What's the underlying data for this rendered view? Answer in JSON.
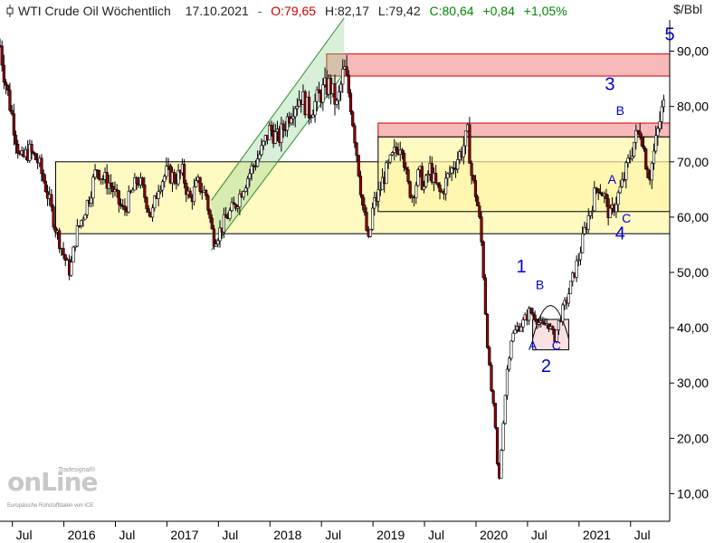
{
  "header": {
    "title": "WTI Crude Oil Wöchentlich",
    "date": "17.10.2021",
    "open": "O:79,65",
    "high": "H:82,17",
    "low": "L:79,42",
    "close": "C:80,64",
    "change": "+0,84",
    "change_pct": "+1,05%",
    "unit": "$/Bbl"
  },
  "watermark": {
    "brand_small": "Tradesignal®",
    "brand": "onLine",
    "credit": "Europäische Rohstoffdaten von ICE"
  },
  "colors": {
    "up_candle": "#000000",
    "down_candle": "#8b0000",
    "open_text": "#cc0000",
    "close_text": "#008800",
    "resistance_zone": "#f08080",
    "support_zone": "#fff6a8",
    "channel": "#8fd08f",
    "wave_label": "#0000cc"
  },
  "chart_data": {
    "type": "candlestick",
    "title": "WTI Crude Oil Wöchentlich",
    "ylabel": "$/Bbl",
    "ylim": [
      5,
      95
    ],
    "xlim": [
      2015.38,
      2021.88
    ],
    "yticks": [
      "10,00",
      "20,00",
      "30,00",
      "40,00",
      "50,00",
      "60,00",
      "70,00",
      "80,00",
      "90,00"
    ],
    "ytick_values": [
      10,
      20,
      30,
      40,
      50,
      60,
      70,
      80,
      90
    ],
    "xticks": [
      {
        "label": "Jul",
        "x": 2015.5
      },
      {
        "label": "2016",
        "x": 2016.0
      },
      {
        "label": "Jul",
        "x": 2016.5
      },
      {
        "label": "2017",
        "x": 2017.0
      },
      {
        "label": "Jul",
        "x": 2017.5
      },
      {
        "label": "2018",
        "x": 2018.0
      },
      {
        "label": "Jul",
        "x": 2018.5
      },
      {
        "label": "2019",
        "x": 2019.0
      },
      {
        "label": "Jul",
        "x": 2019.5
      },
      {
        "label": "2020",
        "x": 2020.0
      },
      {
        "label": "Jul",
        "x": 2020.5
      },
      {
        "label": "2021",
        "x": 2021.0
      },
      {
        "label": "Jul",
        "x": 2021.5
      }
    ],
    "price_path": [
      [
        2015.38,
        91
      ],
      [
        2015.42,
        86
      ],
      [
        2015.5,
        78
      ],
      [
        2015.58,
        70
      ],
      [
        2015.66,
        72
      ],
      [
        2015.75,
        70
      ],
      [
        2015.83,
        65
      ],
      [
        2015.92,
        58
      ],
      [
        2016.0,
        53
      ],
      [
        2016.06,
        50
      ],
      [
        2016.12,
        57
      ],
      [
        2016.18,
        60
      ],
      [
        2016.25,
        64
      ],
      [
        2016.32,
        69
      ],
      [
        2016.38,
        67
      ],
      [
        2016.45,
        66
      ],
      [
        2016.52,
        63
      ],
      [
        2016.58,
        61
      ],
      [
        2016.65,
        64
      ],
      [
        2016.72,
        67
      ],
      [
        2016.8,
        63
      ],
      [
        2016.85,
        60
      ],
      [
        2016.92,
        66
      ],
      [
        2017.0,
        68
      ],
      [
        2017.08,
        67
      ],
      [
        2017.15,
        68
      ],
      [
        2017.22,
        63
      ],
      [
        2017.3,
        66
      ],
      [
        2017.38,
        64
      ],
      [
        2017.45,
        56
      ],
      [
        2017.5,
        57
      ],
      [
        2017.58,
        60
      ],
      [
        2017.66,
        62
      ],
      [
        2017.75,
        66
      ],
      [
        2017.83,
        69
      ],
      [
        2017.92,
        72
      ],
      [
        2018.0,
        76
      ],
      [
        2018.08,
        74
      ],
      [
        2018.15,
        77
      ],
      [
        2018.22,
        80
      ],
      [
        2018.3,
        82
      ],
      [
        2018.38,
        79
      ],
      [
        2018.45,
        81
      ],
      [
        2018.52,
        83
      ],
      [
        2018.58,
        84
      ],
      [
        2018.65,
        80
      ],
      [
        2018.72,
        87
      ],
      [
        2018.78,
        81
      ],
      [
        2018.84,
        72
      ],
      [
        2018.9,
        62
      ],
      [
        2018.96,
        55
      ],
      [
        2019.0,
        62
      ],
      [
        2019.05,
        64
      ],
      [
        2019.1,
        67
      ],
      [
        2019.15,
        69
      ],
      [
        2019.22,
        72
      ],
      [
        2019.28,
        74
      ],
      [
        2019.33,
        66
      ],
      [
        2019.38,
        64
      ],
      [
        2019.45,
        68
      ],
      [
        2019.5,
        65
      ],
      [
        2019.55,
        69
      ],
      [
        2019.6,
        66
      ],
      [
        2019.66,
        64
      ],
      [
        2019.72,
        67
      ],
      [
        2019.8,
        70
      ],
      [
        2019.86,
        72
      ],
      [
        2019.92,
        75
      ],
      [
        2019.96,
        67
      ],
      [
        2020.0,
        64
      ],
      [
        2020.03,
        60
      ],
      [
        2020.06,
        54
      ],
      [
        2020.1,
        40
      ],
      [
        2020.14,
        30
      ],
      [
        2020.18,
        24
      ],
      [
        2020.22,
        11
      ],
      [
        2020.26,
        22
      ],
      [
        2020.3,
        32
      ],
      [
        2020.34,
        38
      ],
      [
        2020.4,
        40
      ],
      [
        2020.46,
        41
      ],
      [
        2020.52,
        43
      ],
      [
        2020.58,
        42
      ],
      [
        2020.64,
        40
      ],
      [
        2020.7,
        41
      ],
      [
        2020.76,
        38
      ],
      [
        2020.82,
        42
      ],
      [
        2020.88,
        45
      ],
      [
        2020.94,
        49
      ],
      [
        2021.0,
        53
      ],
      [
        2021.06,
        58
      ],
      [
        2021.12,
        62
      ],
      [
        2021.18,
        66
      ],
      [
        2021.24,
        64
      ],
      [
        2021.3,
        60
      ],
      [
        2021.36,
        63
      ],
      [
        2021.42,
        66
      ],
      [
        2021.48,
        70
      ],
      [
        2021.54,
        74
      ],
      [
        2021.6,
        76
      ],
      [
        2021.64,
        71
      ],
      [
        2021.68,
        67
      ],
      [
        2021.72,
        71
      ],
      [
        2021.76,
        75
      ],
      [
        2021.8,
        79
      ],
      [
        2021.84,
        81
      ]
    ],
    "zones": [
      {
        "kind": "resistance",
        "x0": 2018.55,
        "x1": 2021.88,
        "y0": 85.5,
        "y1": 89.5
      },
      {
        "kind": "resistance",
        "x0": 2019.05,
        "x1": 2021.88,
        "y0": 74.5,
        "y1": 77.0
      },
      {
        "kind": "support",
        "x0": 2015.92,
        "x1": 2021.88,
        "y0": 57.0,
        "y1": 70.0
      },
      {
        "kind": "support",
        "x0": 2019.05,
        "x1": 2021.88,
        "y0": 61.0,
        "y1": 74.5
      },
      {
        "kind": "small",
        "x0": 2020.55,
        "x1": 2020.9,
        "y0": 36.0,
        "y1": 41.5
      }
    ],
    "channel": {
      "lower": [
        [
          2017.43,
          54
        ],
        [
          2018.72,
          86
        ]
      ],
      "upper": [
        [
          2017.43,
          63
        ],
        [
          2018.72,
          96
        ]
      ]
    },
    "wave_labels": [
      {
        "text": "5",
        "x": 2021.88,
        "y": 92
      },
      {
        "text": "3",
        "x": 2021.3,
        "y": 83
      },
      {
        "text": "B",
        "x": 2021.4,
        "y": 78.5
      },
      {
        "text": "A",
        "x": 2021.32,
        "y": 66
      },
      {
        "text": "C",
        "x": 2021.46,
        "y": 59
      },
      {
        "text": "4",
        "x": 2021.4,
        "y": 56
      },
      {
        "text": "1",
        "x": 2020.44,
        "y": 50
      },
      {
        "text": "B",
        "x": 2020.62,
        "y": 47
      },
      {
        "text": "A",
        "x": 2020.55,
        "y": 36
      },
      {
        "text": "C",
        "x": 2020.78,
        "y": 36
      },
      {
        "text": "2",
        "x": 2020.68,
        "y": 32
      }
    ]
  }
}
